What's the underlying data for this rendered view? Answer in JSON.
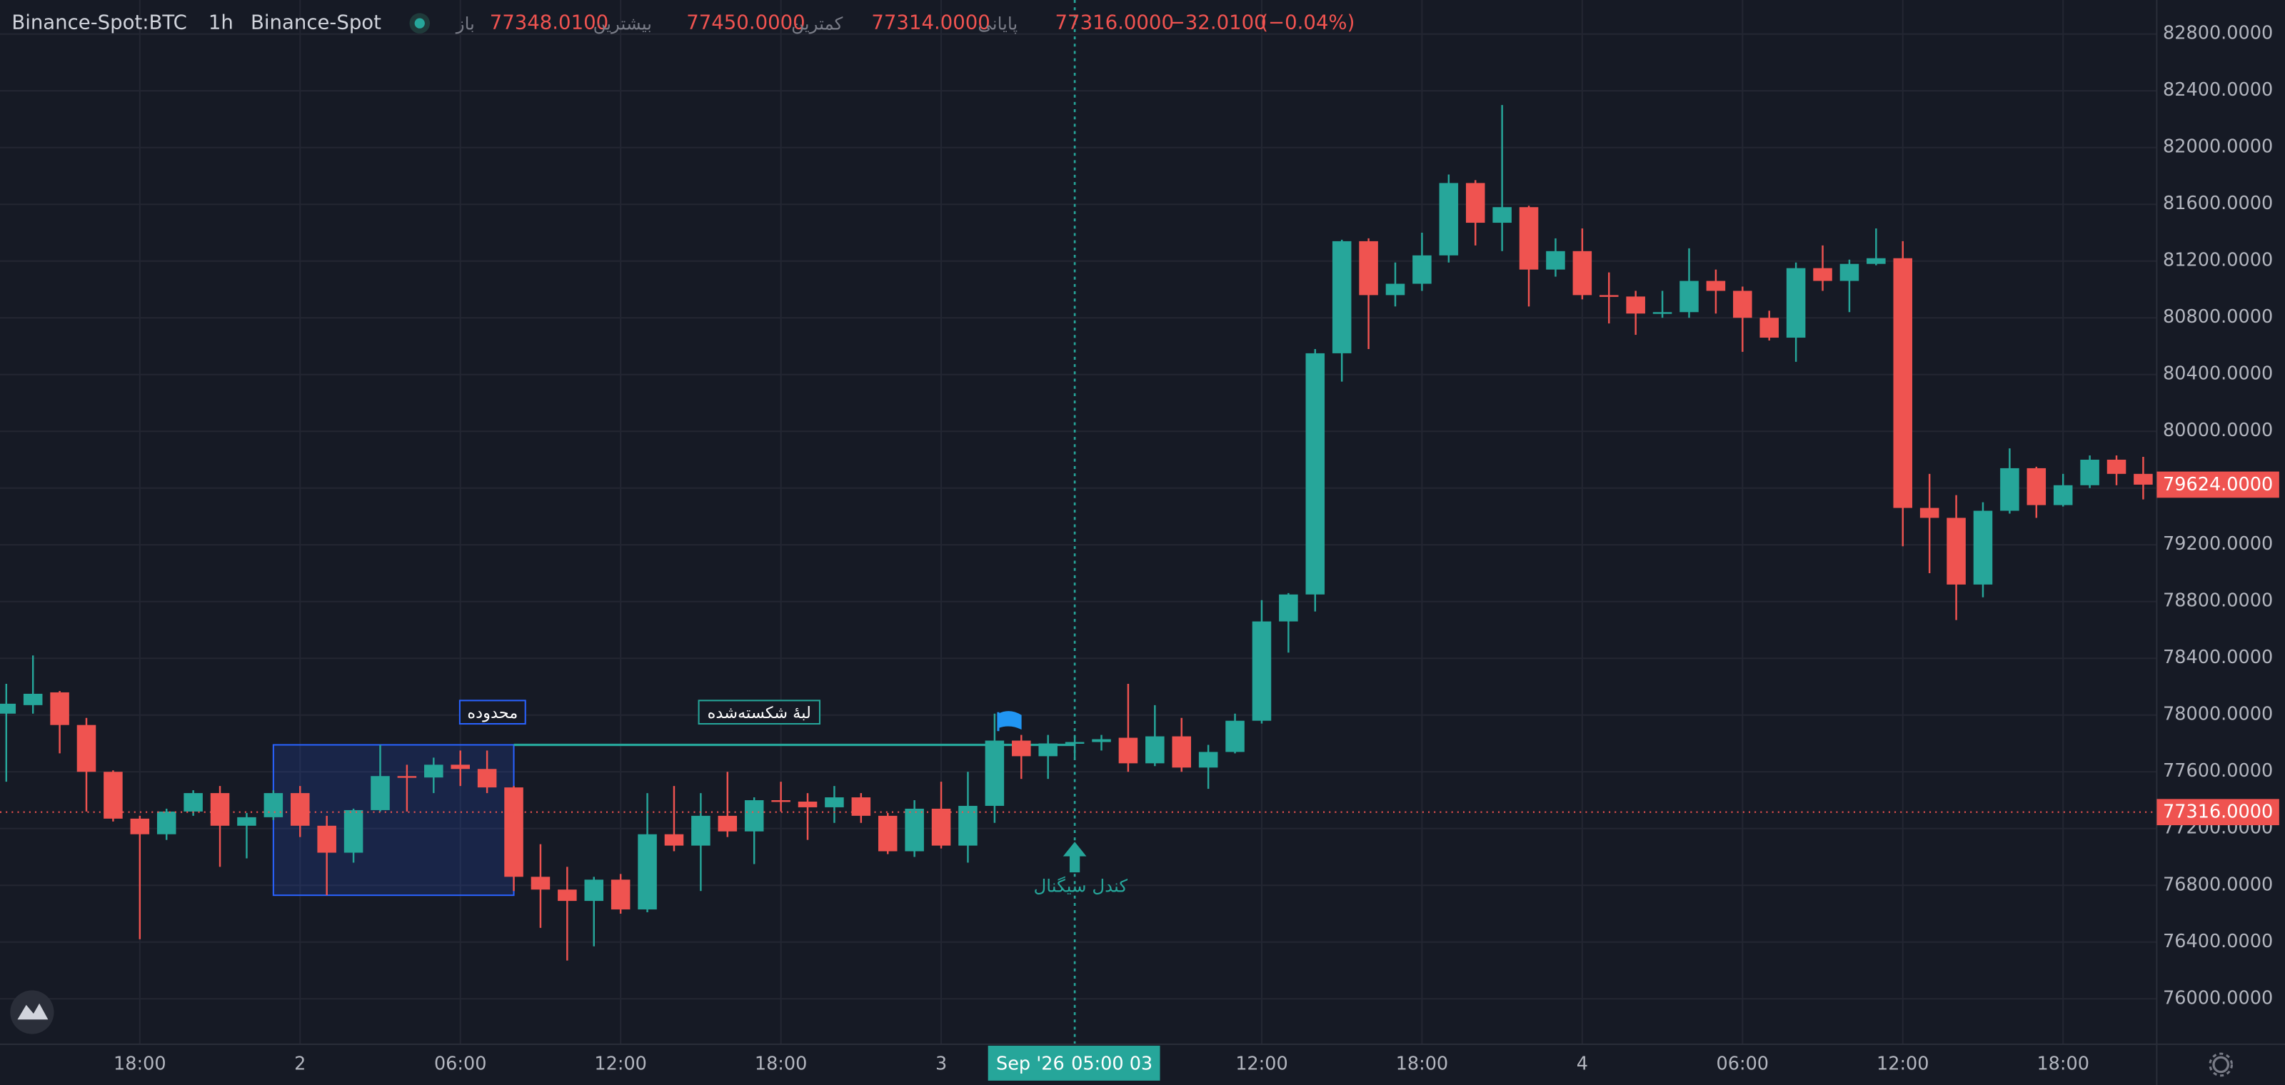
{
  "chart_data": {
    "type": "candlestick",
    "header": {
      "symbol": "Binance-Spot:BTC",
      "interval": "1h",
      "exchange": "Binance-Spot",
      "ohlc": [
        {
          "name": "باز",
          "value": 77348.01,
          "label": "77348.0100"
        },
        {
          "name": "بیشترین",
          "value": 77450,
          "label": "77450.0000"
        },
        {
          "name": "کمترین",
          "value": 77314,
          "label": "77314.0000"
        },
        {
          "name": "پایانی",
          "value": 77316,
          "label": "77316.0000"
        }
      ],
      "change": {
        "value": -32.01,
        "label": "−32.0100"
      },
      "change_pct": {
        "value": -0.04,
        "label": "(−0.04%)"
      }
    },
    "categories": [
      null,
      null,
      null,
      null,
      null,
      "18:00",
      null,
      null,
      null,
      null,
      null,
      "2",
      null,
      null,
      null,
      null,
      null,
      "06:00",
      null,
      null,
      null,
      null,
      null,
      "12:00",
      null,
      null,
      null,
      null,
      null,
      "18:00",
      null,
      null,
      null,
      null,
      null,
      "3",
      null,
      null,
      null,
      null,
      null,
      null,
      null,
      null,
      null,
      null,
      null,
      "12:00",
      null,
      null,
      null,
      null,
      null,
      "18:00",
      null,
      null,
      null,
      null,
      null,
      "4",
      null,
      null,
      null,
      null,
      null,
      "06:00",
      null,
      null,
      null,
      null,
      null,
      "12:00",
      null,
      null,
      null,
      null,
      null,
      "18:00",
      null,
      null,
      null
    ],
    "open": [
      78010,
      78070,
      78160,
      77930,
      77600,
      77270,
      77160,
      77320,
      77450,
      77220,
      77280,
      77450,
      77220,
      77030,
      77330,
      77570,
      77560,
      77650,
      77620,
      77490,
      76860,
      76770,
      76690,
      76840,
      76630,
      77160,
      77080,
      77290,
      77180,
      77400,
      77390,
      77350,
      77420,
      77290,
      77040,
      77340,
      77080,
      77360,
      77820,
      77710,
      77800,
      77810,
      77840,
      77660,
      77850,
      77630,
      77740,
      77960,
      78660,
      78850,
      80550,
      81340,
      80960,
      81040,
      81240,
      81750,
      81470,
      81580,
      81140,
      81270,
      80960,
      80950,
      80830,
      80840,
      81060,
      80990,
      80800,
      80660,
      81150,
      81060,
      81180,
      81220,
      79460,
      79390,
      78920,
      79440,
      79740,
      79480,
      79620,
      79800,
      79700
    ],
    "high": [
      78220,
      78420,
      78170,
      77980,
      77610,
      77290,
      77340,
      77470,
      77500,
      77310,
      77470,
      77500,
      77290,
      77340,
      77790,
      77650,
      77700,
      77750,
      77750,
      77500,
      77090,
      76930,
      76860,
      76880,
      77450,
      77500,
      77450,
      77600,
      77420,
      77530,
      77450,
      77500,
      77450,
      77310,
      77400,
      77530,
      77600,
      78010,
      77860,
      77860,
      77860,
      77860,
      78220,
      78070,
      77980,
      77790,
      78010,
      78810,
      78860,
      80580,
      81350,
      81360,
      81190,
      81400,
      81810,
      81770,
      82300,
      81590,
      81360,
      81430,
      81120,
      80990,
      80990,
      81290,
      81140,
      81020,
      80850,
      81190,
      81310,
      81210,
      81430,
      81340,
      79700,
      79550,
      79500,
      79880,
      79750,
      79700,
      79830,
      79830,
      79820
    ],
    "low": [
      77530,
      78010,
      77730,
      77320,
      77250,
      76420,
      77120,
      77290,
      76930,
      76990,
      77260,
      77140,
      76730,
      76960,
      77320,
      77320,
      77450,
      77500,
      77450,
      76760,
      76500,
      76270,
      76370,
      76600,
      76610,
      77040,
      76760,
      77140,
      76950,
      77320,
      77120,
      77240,
      77240,
      77020,
      77000,
      77060,
      76960,
      77240,
      77550,
      77550,
      77700,
      77750,
      77600,
      77640,
      77600,
      77480,
      77730,
      77940,
      78440,
      78730,
      80350,
      80580,
      80880,
      80990,
      81190,
      81310,
      81270,
      80880,
      81090,
      80930,
      80760,
      80680,
      80800,
      80800,
      80830,
      80560,
      80640,
      80490,
      80990,
      80840,
      81170,
      79190,
      79000,
      78670,
      78830,
      79420,
      79390,
      79470,
      79600,
      79620,
      79520
    ],
    "close": [
      78080,
      78150,
      77930,
      77600,
      77270,
      77160,
      77320,
      77450,
      77220,
      77280,
      77450,
      77220,
      77030,
      77330,
      77570,
      77560,
      77650,
      77620,
      77490,
      76860,
      76770,
      76690,
      76840,
      76630,
      77160,
      77080,
      77290,
      77180,
      77400,
      77390,
      77350,
      77420,
      77290,
      77040,
      77340,
      77080,
      77360,
      77820,
      77710,
      77800,
      77810,
      77830,
      77660,
      77850,
      77630,
      77740,
      77960,
      78660,
      78850,
      80550,
      81340,
      80960,
      81040,
      81240,
      81750,
      81470,
      81580,
      81140,
      81270,
      80960,
      80950,
      80830,
      80840,
      81060,
      80990,
      80800,
      80660,
      81150,
      81060,
      81180,
      81220,
      79460,
      79390,
      78920,
      79440,
      79740,
      79480,
      79620,
      79800,
      79700,
      79624
    ],
    "up_color": "#26a69a",
    "down_color": "#ef5350",
    "ylim": [
      75680,
      83040
    ],
    "yticks": [
      {
        "value": 76000,
        "label": "76000.0000"
      },
      {
        "value": 76400,
        "label": "76400.0000"
      },
      {
        "value": 76800,
        "label": "76800.0000"
      },
      {
        "value": 77200,
        "label": "77200.0000"
      },
      {
        "value": 77600,
        "label": "77600.0000"
      },
      {
        "value": 78000,
        "label": "78000.0000"
      },
      {
        "value": 78400,
        "label": "78400.0000"
      },
      {
        "value": 78800,
        "label": "78800.0000"
      },
      {
        "value": 79200,
        "label": "79200.0000"
      },
      {
        "value": 79600,
        "label": "79600.0000"
      },
      {
        "value": 80000,
        "label": "80000.0000"
      },
      {
        "value": 80400,
        "label": "80400.0000"
      },
      {
        "value": 80800,
        "label": "80800.0000"
      },
      {
        "value": 81200,
        "label": "81200.0000"
      },
      {
        "value": 81600,
        "label": "81600.0000"
      },
      {
        "value": 82000,
        "label": "82000.0000"
      },
      {
        "value": 82400,
        "label": "82400.0000"
      },
      {
        "value": 82800,
        "label": "82800.0000"
      }
    ],
    "grid": true,
    "last_price": {
      "value": 79624,
      "label": "79624.0000"
    },
    "crosshair": {
      "price": {
        "value": 77316,
        "label": "77316.0000"
      },
      "time_labels": [
        "Sep '26",
        "05:00 03"
      ]
    },
    "annotations": {
      "range": "محدوده",
      "broken_edge": "لبهٔ شکسته‌شده",
      "signal": "کندل سیگنال"
    }
  }
}
